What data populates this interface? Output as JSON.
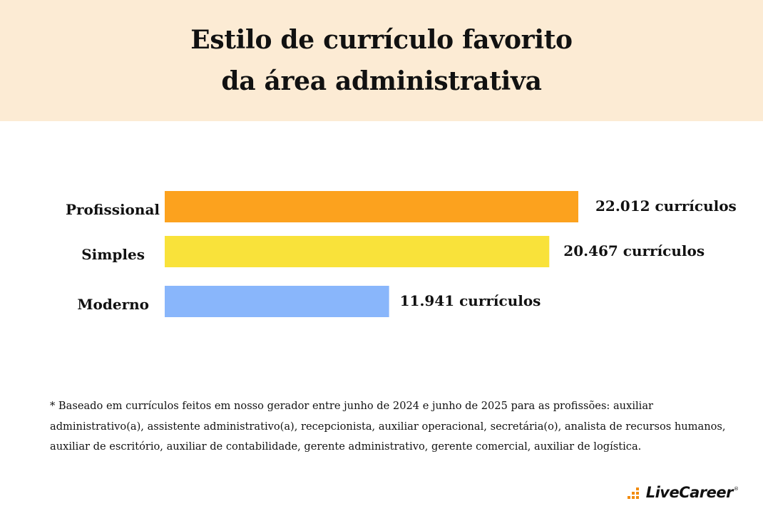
{
  "header": {
    "title_line1": "Estilo de currículo favorito",
    "title_line2": "da área administrativa"
  },
  "chart_data": {
    "type": "bar",
    "orientation": "horizontal",
    "title": "Estilo de currículo favorito da área administrativa",
    "categories": [
      "Profissional",
      "Simples",
      "Moderno"
    ],
    "values": [
      22012,
      20467,
      11941
    ],
    "value_labels": [
      "22.012 currículos",
      "20.467 currículos",
      "11.941  currículos"
    ],
    "colors": [
      "#fca21e",
      "#f9e23a",
      "#89b6fb"
    ],
    "xlabel": "",
    "ylabel": "",
    "grid": false,
    "legend": "none"
  },
  "footnote": "* Baseado em currículos feitos em nosso gerador entre junho de 2024 e junho de 2025 para as profissões: auxiliar administrativo(a), assistente administrativo(a), recepcionista, auxiliar operacional, secretária(o), analista de recursos humanos, auxiliar de escritório, auxiliar de contabilidade, gerente administrativo, gerente comercial, auxiliar de logística.",
  "brand": {
    "name": "LiveCareer",
    "registered_mark": "®",
    "accent_color": "#f28c0f",
    "icon": "livecareer-logo-mark"
  }
}
